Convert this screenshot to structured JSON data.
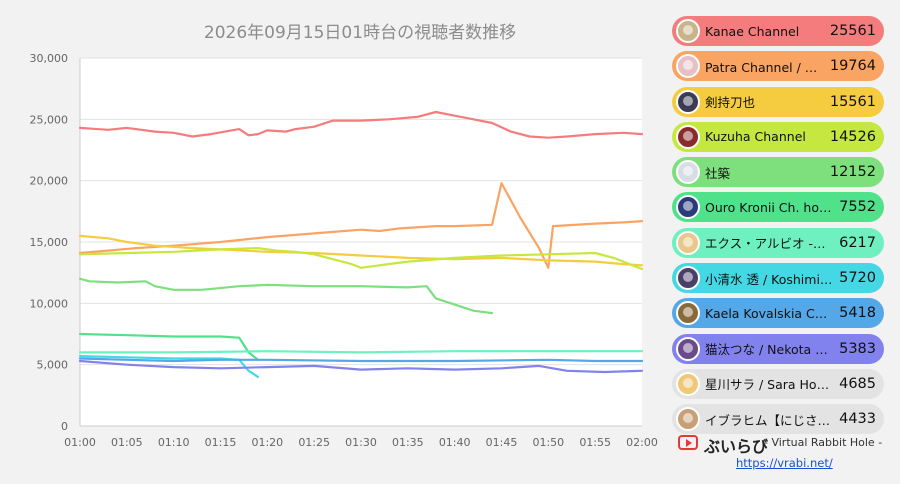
{
  "chart_data": {
    "type": "line",
    "title": "2026年09月15日01時台の視聴者数推移",
    "ylim": [
      0,
      30000
    ],
    "yticks": [
      "0",
      "5,000",
      "10,000",
      "15,000",
      "20,000",
      "25,000",
      "30,000"
    ],
    "xlim": [
      0,
      60
    ],
    "xtick_labels": [
      "01:00",
      "01:05",
      "01:10",
      "01:15",
      "01:20",
      "01:25",
      "01:30",
      "01:35",
      "01:40",
      "01:45",
      "01:50",
      "01:55",
      "02:00"
    ],
    "grid": "horizontal",
    "series": [
      {
        "name": "Kanae Channel",
        "color": "#f47c7c",
        "points": [
          [
            0,
            24300
          ],
          [
            3,
            24150
          ],
          [
            5,
            24300
          ],
          [
            8,
            24000
          ],
          [
            10,
            23900
          ],
          [
            12,
            23600
          ],
          [
            14,
            23800
          ],
          [
            17,
            24200
          ],
          [
            18,
            23700
          ],
          [
            19,
            23800
          ],
          [
            20,
            24100
          ],
          [
            22,
            24000
          ],
          [
            23,
            24200
          ],
          [
            25,
            24400
          ],
          [
            27,
            24900
          ],
          [
            30,
            24900
          ],
          [
            33,
            25000
          ],
          [
            36,
            25200
          ],
          [
            38,
            25600
          ],
          [
            40,
            25300
          ],
          [
            42,
            25000
          ],
          [
            44,
            24700
          ],
          [
            46,
            24000
          ],
          [
            48,
            23600
          ],
          [
            50,
            23500
          ],
          [
            52,
            23600
          ],
          [
            55,
            23800
          ],
          [
            58,
            23900
          ],
          [
            60,
            23800
          ]
        ]
      },
      {
        "name": "Patra Channel / 周防パトラ",
        "color": "#f9a462",
        "points": [
          [
            0,
            14100
          ],
          [
            3,
            14300
          ],
          [
            6,
            14500
          ],
          [
            10,
            14700
          ],
          [
            15,
            15000
          ],
          [
            20,
            15400
          ],
          [
            25,
            15700
          ],
          [
            30,
            16000
          ],
          [
            32,
            15900
          ],
          [
            34,
            16100
          ],
          [
            38,
            16300
          ],
          [
            40,
            16300
          ],
          [
            44,
            16400
          ],
          [
            45,
            19800
          ],
          [
            47,
            17000
          ],
          [
            49,
            14500
          ],
          [
            50,
            12900
          ],
          [
            50.5,
            16300
          ],
          [
            55,
            16500
          ],
          [
            58,
            16600
          ],
          [
            60,
            16700
          ]
        ]
      },
      {
        "name": "剣持刀也",
        "color": "#f5cc40",
        "points": [
          [
            0,
            15500
          ],
          [
            3,
            15300
          ],
          [
            5,
            15000
          ],
          [
            8,
            14700
          ],
          [
            12,
            14500
          ],
          [
            15,
            14400
          ],
          [
            20,
            14200
          ],
          [
            25,
            14100
          ],
          [
            30,
            13900
          ],
          [
            35,
            13700
          ],
          [
            40,
            13600
          ],
          [
            45,
            13700
          ],
          [
            50,
            13500
          ],
          [
            55,
            13400
          ],
          [
            58,
            13200
          ],
          [
            60,
            13100
          ]
        ]
      },
      {
        "name": "Kuzuha Channel",
        "color": "#c6e640",
        "points": [
          [
            0,
            14000
          ],
          [
            5,
            14100
          ],
          [
            10,
            14200
          ],
          [
            15,
            14400
          ],
          [
            19,
            14500
          ],
          [
            21,
            14300
          ],
          [
            23,
            14200
          ],
          [
            25,
            14000
          ],
          [
            27,
            13600
          ],
          [
            29,
            13200
          ],
          [
            30,
            12900
          ],
          [
            32,
            13100
          ],
          [
            35,
            13400
          ],
          [
            40,
            13700
          ],
          [
            45,
            13900
          ],
          [
            50,
            14000
          ],
          [
            55,
            14100
          ],
          [
            57,
            13700
          ],
          [
            60,
            12800
          ]
        ]
      },
      {
        "name": "社築",
        "color": "#7de07d",
        "points": [
          [
            0,
            12000
          ],
          [
            1,
            11800
          ],
          [
            4,
            11700
          ],
          [
            7,
            11800
          ],
          [
            8,
            11400
          ],
          [
            10,
            11100
          ],
          [
            13,
            11100
          ],
          [
            17,
            11400
          ],
          [
            20,
            11500
          ],
          [
            25,
            11400
          ],
          [
            30,
            11400
          ],
          [
            35,
            11300
          ],
          [
            37,
            11400
          ],
          [
            38,
            10400
          ],
          [
            40,
            9900
          ],
          [
            42,
            9400
          ],
          [
            44,
            9200
          ]
        ]
      },
      {
        "name": "Ouro Kronii Ch. hololive-EN",
        "color": "#4fe28a",
        "points": [
          [
            0,
            7500
          ],
          [
            5,
            7400
          ],
          [
            10,
            7300
          ],
          [
            15,
            7300
          ],
          [
            17,
            7200
          ],
          [
            18,
            6000
          ],
          [
            19,
            5400
          ]
        ]
      },
      {
        "name": "エクス・アルビオ -Ex Albio-",
        "color": "#6ef0c0",
        "points": [
          [
            0,
            6000
          ],
          [
            10,
            6000
          ],
          [
            20,
            6100
          ],
          [
            30,
            6000
          ],
          [
            40,
            6100
          ],
          [
            50,
            6100
          ],
          [
            60,
            6100
          ]
        ]
      },
      {
        "name": "小清水 透 / Koshimizu Toru",
        "color": "#44d8e4",
        "points": [
          [
            0,
            5700
          ],
          [
            5,
            5600
          ],
          [
            10,
            5500
          ],
          [
            15,
            5500
          ],
          [
            17,
            5400
          ],
          [
            18,
            4500
          ],
          [
            19,
            4000
          ]
        ]
      },
      {
        "name": "Kaela Kovalskia Ch. hololive-ID",
        "color": "#54a8e8",
        "points": [
          [
            0,
            5500
          ],
          [
            5,
            5400
          ],
          [
            10,
            5300
          ],
          [
            15,
            5400
          ],
          [
            20,
            5400
          ],
          [
            30,
            5300
          ],
          [
            40,
            5300
          ],
          [
            50,
            5400
          ],
          [
            55,
            5300
          ],
          [
            60,
            5300
          ]
        ]
      },
      {
        "name": "猫汰つな / Nekota Tsuna",
        "color": "#8282ee",
        "points": [
          [
            0,
            5300
          ],
          [
            5,
            5000
          ],
          [
            10,
            4800
          ],
          [
            15,
            4700
          ],
          [
            20,
            4800
          ],
          [
            25,
            4900
          ],
          [
            30,
            4600
          ],
          [
            35,
            4700
          ],
          [
            40,
            4600
          ],
          [
            45,
            4700
          ],
          [
            49,
            4900
          ],
          [
            52,
            4500
          ],
          [
            56,
            4400
          ],
          [
            60,
            4500
          ]
        ]
      }
    ]
  },
  "ranking": [
    {
      "name": "Kanae Channel",
      "count": "25561",
      "color": "#f47c7c",
      "avatar": "#c9b48a"
    },
    {
      "name": "Patra Channel / 周防パトラ",
      "count": "19764",
      "color": "#f9a462",
      "avatar": "#e7c0c4"
    },
    {
      "name": "剣持刀也",
      "count": "15561",
      "color": "#f5cc40",
      "avatar": "#3b3b55"
    },
    {
      "name": "Kuzuha Channel",
      "count": "14526",
      "color": "#c6e640",
      "avatar": "#8b2a2a"
    },
    {
      "name": "社築",
      "count": "12152",
      "color": "#7de07d",
      "avatar": "#d9dde6"
    },
    {
      "name": "Ouro Kronii Ch. hololive-EN",
      "count": "7552",
      "color": "#4fe28a",
      "avatar": "#2b3a7a"
    },
    {
      "name": "エクス・アルビオ -Ex Albio-",
      "count": "6217",
      "color": "#6ef0c0",
      "avatar": "#e8c88a"
    },
    {
      "name": "小清水 透 / Koshimizu Toru",
      "count": "5720",
      "color": "#44d8e4",
      "avatar": "#4a3e6a"
    },
    {
      "name": "Kaela Kovalskia Ch. hololive-ID",
      "count": "5418",
      "color": "#54a8e8",
      "avatar": "#8a6a3a"
    },
    {
      "name": "猫汰つな / Nekota Tsuna",
      "count": "5383",
      "color": "#8282ee",
      "avatar": "#6a4a8a"
    },
    {
      "name": "星川サラ / Sara Hoshikawa",
      "count": "4685",
      "color": "#e3e3e3",
      "avatar": "#f0c878"
    },
    {
      "name": "イブラヒム【にじさんじ】",
      "count": "4433",
      "color": "#e3e3e3",
      "avatar": "#c8a078"
    }
  ],
  "brand": {
    "name": "ぶいらび",
    "tagline": "- Virtual Rabbit Hole -",
    "url": "https://vrabi.net/"
  }
}
